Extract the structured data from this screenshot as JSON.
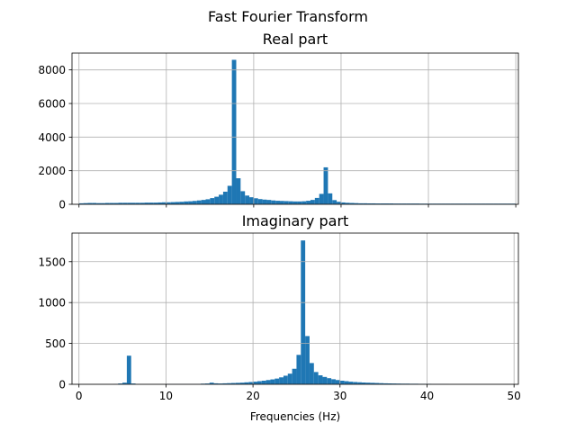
{
  "suptitle": "Fast Fourier Transform",
  "colors": {
    "bar": "#1f77b4",
    "grid": "#b0b0b0",
    "axis": "#000000"
  },
  "chart_data": [
    {
      "type": "bar",
      "title": "Real part",
      "xlabel": "",
      "ylabel": "",
      "xlim": [
        -0.8,
        50.3
      ],
      "ylim": [
        0,
        9000
      ],
      "grid": true,
      "show_x_tick_labels": false,
      "xticks": [
        0,
        10,
        20,
        30,
        40,
        50
      ],
      "xtick_labels": [
        "",
        "",
        "",
        "",
        "",
        ""
      ],
      "yticks": [
        0,
        2000,
        4000,
        6000,
        8000
      ],
      "ytick_labels": [
        "0",
        "2000",
        "4000",
        "6000",
        "8000"
      ],
      "bar_width": 0.5,
      "x": [
        0,
        0.5,
        1,
        1.5,
        2,
        2.5,
        3,
        3.5,
        4,
        4.5,
        5,
        5.5,
        6,
        6.5,
        7,
        7.5,
        8,
        8.5,
        9,
        9.5,
        10,
        10.5,
        11,
        11.5,
        12,
        12.5,
        13,
        13.5,
        14,
        14.5,
        15,
        15.5,
        16,
        16.5,
        17,
        17.5,
        18,
        18.5,
        19,
        19.5,
        20,
        20.5,
        21,
        21.5,
        22,
        22.5,
        23,
        23.5,
        24,
        24.5,
        25,
        25.5,
        26,
        26.5,
        27,
        27.5,
        28,
        28.5,
        29,
        29.5,
        30,
        30.5,
        31,
        31.5,
        32,
        32.5,
        33,
        33.5,
        34,
        34.5,
        35,
        35.5,
        36,
        36.5,
        37,
        37.5,
        38,
        38.5,
        39,
        39.5,
        40,
        40.5,
        41,
        41.5,
        42,
        42.5,
        43,
        43.5,
        44,
        44.5,
        45,
        45.5,
        46,
        46.5,
        47,
        47.5,
        48,
        48.5,
        49,
        49.5
      ],
      "values": [
        60,
        70,
        80,
        80,
        70,
        70,
        80,
        80,
        80,
        90,
        90,
        90,
        90,
        90,
        90,
        100,
        100,
        100,
        110,
        120,
        120,
        130,
        140,
        150,
        170,
        180,
        200,
        230,
        260,
        300,
        370,
        450,
        570,
        750,
        1100,
        8600,
        1550,
        780,
        520,
        420,
        360,
        310,
        280,
        260,
        230,
        210,
        200,
        190,
        180,
        170,
        170,
        180,
        210,
        260,
        380,
        620,
        2200,
        650,
        250,
        150,
        110,
        90,
        80,
        70,
        60,
        60,
        55,
        55,
        50,
        50,
        50,
        50,
        45,
        45,
        45,
        45,
        45,
        45,
        40,
        40,
        40,
        40,
        40,
        40,
        40,
        40,
        40,
        40,
        40,
        40,
        40,
        40,
        40,
        40,
        40,
        40,
        40,
        40,
        40,
        40
      ]
    },
    {
      "type": "bar",
      "title": "Imaginary part",
      "xlabel": "Frequencies (Hz)",
      "ylabel": "",
      "xlim": [
        -0.8,
        50.5
      ],
      "ylim": [
        0,
        1850
      ],
      "grid": true,
      "show_x_tick_labels": true,
      "xticks": [
        0,
        10,
        20,
        30,
        40,
        50
      ],
      "xtick_labels": [
        "0",
        "10",
        "20",
        "30",
        "40",
        "50"
      ],
      "yticks": [
        0,
        500,
        1000,
        1500
      ],
      "ytick_labels": [
        "0",
        "500",
        "1000",
        "1500"
      ],
      "bar_width": 0.5,
      "x": [
        0,
        0.5,
        1,
        1.5,
        2,
        2.5,
        3,
        3.5,
        4,
        4.5,
        5,
        5.5,
        6,
        6.5,
        7,
        7.5,
        8,
        8.5,
        9,
        9.5,
        10,
        10.5,
        11,
        11.5,
        12,
        12.5,
        13,
        13.5,
        14,
        14.5,
        15,
        15.5,
        16,
        16.5,
        17,
        17.5,
        18,
        18.5,
        19,
        19.5,
        20,
        20.5,
        21,
        21.5,
        22,
        22.5,
        23,
        23.5,
        24,
        24.5,
        25,
        25.5,
        26,
        26.5,
        27,
        27.5,
        28,
        28.5,
        29,
        29.5,
        30,
        30.5,
        31,
        31.5,
        32,
        32.5,
        33,
        33.5,
        34,
        34.5,
        35,
        35.5,
        36,
        36.5,
        37,
        37.5,
        38,
        38.5,
        39,
        39.5,
        40,
        40.5,
        41,
        41.5,
        42,
        42.5,
        43,
        43.5,
        44,
        44.5,
        45,
        45.5,
        46,
        46.5,
        47,
        47.5,
        48,
        48.5,
        49,
        49.5
      ],
      "values": [
        0,
        0,
        0,
        0,
        0,
        0,
        0,
        0,
        5,
        10,
        20,
        350,
        10,
        0,
        0,
        0,
        0,
        0,
        0,
        0,
        5,
        5,
        5,
        5,
        5,
        5,
        5,
        5,
        8,
        10,
        20,
        12,
        10,
        12,
        14,
        16,
        18,
        20,
        24,
        28,
        32,
        38,
        44,
        52,
        60,
        70,
        85,
        105,
        130,
        190,
        360,
        1760,
        590,
        260,
        150,
        110,
        90,
        75,
        62,
        52,
        44,
        38,
        32,
        28,
        25,
        22,
        20,
        18,
        16,
        14,
        12,
        11,
        10,
        9,
        8,
        8,
        7,
        7,
        6,
        6,
        6,
        5,
        5,
        5,
        4,
        0,
        0,
        0,
        0,
        0,
        0,
        0,
        0,
        0,
        0,
        0,
        0,
        0,
        0,
        0
      ]
    }
  ]
}
